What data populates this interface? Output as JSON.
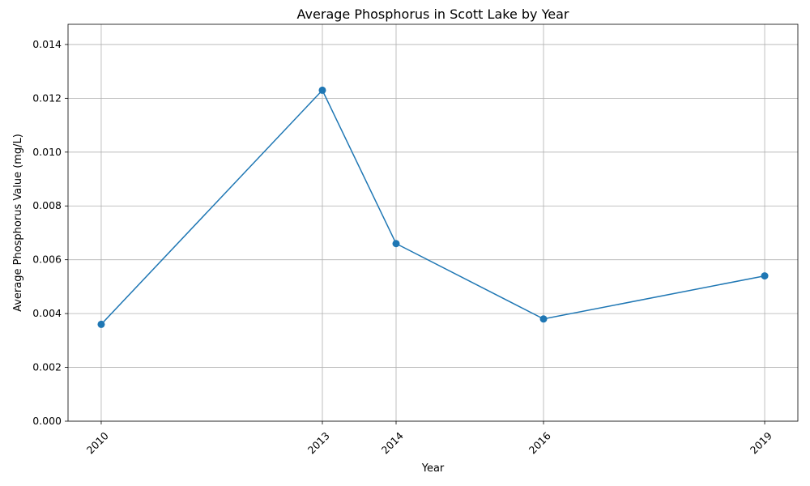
{
  "chart_data": {
    "type": "line",
    "title": "Average Phosphorus in Scott Lake by Year",
    "xlabel": "Year",
    "ylabel": "Average Phosphorus Value (mg/L)",
    "x": [
      2010,
      2013,
      2014,
      2016,
      2019
    ],
    "x_tick_labels": [
      "2010",
      "2013",
      "2014",
      "2016",
      "2019"
    ],
    "series": [
      {
        "values": [
          0.0036,
          0.0123,
          0.0066,
          0.0038,
          0.0054
        ],
        "color": "#1f77b4",
        "marker": "circle"
      }
    ],
    "xlim": [
      2009.55,
      2019.45
    ],
    "ylim": [
      0,
      0.01475
    ],
    "y_ticks": [
      0,
      0.002,
      0.004,
      0.006,
      0.008,
      0.01,
      0.012,
      0.014
    ],
    "y_tick_labels": [
      "0.000",
      "0.002",
      "0.004",
      "0.006",
      "0.008",
      "0.010",
      "0.012",
      "0.014"
    ],
    "grid": true,
    "legend": "none"
  }
}
